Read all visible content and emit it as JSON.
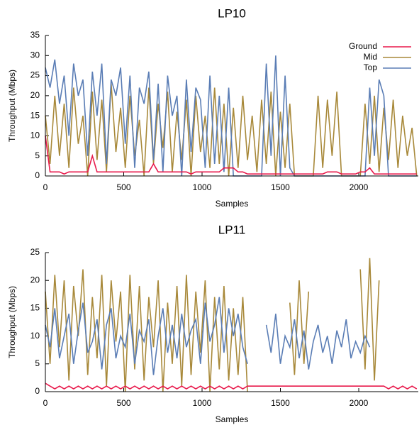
{
  "chart_data": [
    {
      "type": "line",
      "title": "LP10",
      "xlabel": "Samples",
      "ylabel": "Throughput (Mbps)",
      "xlim": [
        0,
        2380
      ],
      "ylim": [
        0,
        35
      ],
      "xticks": [
        0,
        500,
        1000,
        1500,
        2000
      ],
      "yticks": [
        0,
        5,
        10,
        15,
        20,
        25,
        30,
        35
      ],
      "legend": "upper right",
      "x": [
        0,
        30,
        60,
        90,
        120,
        150,
        180,
        210,
        240,
        270,
        300,
        330,
        360,
        390,
        420,
        450,
        480,
        510,
        540,
        570,
        600,
        630,
        660,
        690,
        720,
        750,
        780,
        810,
        840,
        870,
        900,
        930,
        960,
        990,
        1020,
        1050,
        1080,
        1110,
        1140,
        1170,
        1200,
        1230,
        1260,
        1290,
        1320,
        1350,
        1380,
        1410,
        1440,
        1470,
        1500,
        1530,
        1560,
        1590,
        1620,
        1650,
        1680,
        1710,
        1740,
        1770,
        1800,
        1830,
        1860,
        1890,
        1920,
        1950,
        1980,
        2010,
        2040,
        2070,
        2100,
        2130,
        2160,
        2190,
        2220,
        2250,
        2280,
        2310,
        2340,
        2370
      ],
      "series": [
        {
          "name": "Ground",
          "color": "#e8194b",
          "values": [
            10,
            1,
            1,
            1,
            0.5,
            1,
            1,
            1,
            1,
            1,
            5,
            1,
            1,
            1,
            1,
            1,
            1,
            1,
            1,
            1,
            1,
            1,
            1,
            3,
            1,
            1,
            1,
            1,
            1,
            1,
            1,
            0.5,
            1,
            1,
            1,
            1,
            1,
            1,
            2,
            2,
            2,
            1,
            1,
            0.5,
            0.5,
            0.5,
            0.5,
            0.5,
            0.5,
            0.5,
            0.5,
            0.5,
            0.5,
            0.5,
            0.5,
            0.5,
            0.5,
            0.5,
            0.5,
            0.5,
            1,
            1,
            1,
            0.5,
            0.5,
            0.5,
            0.5,
            1,
            1,
            2,
            0.5,
            0.5,
            0.5,
            0.5,
            0.5,
            0.5,
            0.5,
            0.5,
            0.5,
            0.5
          ]
        },
        {
          "name": "Mid",
          "color": "#a8893a",
          "values": [
            15,
            3,
            20,
            5,
            18,
            2,
            22,
            8,
            15,
            0,
            21,
            4,
            19,
            1,
            23,
            6,
            17,
            2,
            20,
            5,
            14,
            0,
            22,
            3,
            18,
            7,
            21,
            1,
            16,
            4,
            19,
            0,
            20,
            6,
            15,
            2,
            22,
            3,
            18,
            0,
            17,
            2,
            20,
            4,
            15,
            1,
            19,
            3,
            21,
            0,
            16,
            2,
            18,
            0,
            0,
            0,
            0,
            0,
            20,
            2,
            19,
            5,
            21,
            0,
            0,
            0,
            0,
            0,
            18,
            3,
            20,
            1,
            17,
            4,
            19,
            2,
            15,
            5,
            12,
            0
          ]
        },
        {
          "name": "Top",
          "color": "#5a7db5",
          "values": [
            27,
            22,
            29,
            18,
            25,
            10,
            28,
            20,
            24,
            5,
            26,
            15,
            28,
            3,
            24,
            20,
            27,
            8,
            25,
            2,
            22,
            18,
            26,
            4,
            23,
            1,
            25,
            15,
            20,
            0,
            24,
            6,
            22,
            19,
            2,
            25,
            3,
            20,
            1,
            22,
            0,
            0,
            0,
            0,
            0,
            0,
            0,
            28,
            5,
            30,
            0,
            25,
            2,
            0,
            0,
            0,
            0,
            0,
            0,
            0,
            0,
            0,
            0,
            0,
            0,
            0,
            0,
            0,
            0,
            22,
            5,
            24,
            20,
            0,
            0,
            0,
            0,
            0,
            0,
            0
          ]
        }
      ]
    },
    {
      "type": "line",
      "title": "LP11",
      "xlabel": "Samples",
      "ylabel": "Throughput (Mbps)",
      "xlim": [
        0,
        2380
      ],
      "ylim": [
        0,
        25
      ],
      "xticks": [
        0,
        500,
        1000,
        1500,
        2000
      ],
      "yticks": [
        0,
        5,
        10,
        15,
        20,
        25
      ],
      "x": [
        0,
        30,
        60,
        90,
        120,
        150,
        180,
        210,
        240,
        270,
        300,
        330,
        360,
        390,
        420,
        450,
        480,
        510,
        540,
        570,
        600,
        630,
        660,
        690,
        720,
        750,
        780,
        810,
        840,
        870,
        900,
        930,
        960,
        990,
        1020,
        1050,
        1080,
        1110,
        1140,
        1170,
        1200,
        1230,
        1260,
        1290,
        1320,
        1350,
        1380,
        1410,
        1440,
        1470,
        1500,
        1530,
        1560,
        1590,
        1620,
        1650,
        1680,
        1710,
        1740,
        1770,
        1800,
        1830,
        1860,
        1890,
        1920,
        1950,
        1980,
        2010,
        2040,
        2070,
        2100,
        2130,
        2160,
        2190,
        2220,
        2250,
        2280,
        2310,
        2340,
        2370
      ],
      "series": [
        {
          "color": "#e8194b",
          "values": [
            1.5,
            1,
            0.5,
            1,
            0.5,
            1,
            0.5,
            1,
            0.5,
            1,
            0.5,
            1,
            0.5,
            1,
            0.5,
            1,
            0.5,
            1,
            0.5,
            1,
            0.5,
            1,
            0.5,
            1,
            0.5,
            1,
            0.5,
            1,
            0.5,
            1,
            0.5,
            1,
            0.5,
            1,
            0.5,
            1,
            0.5,
            1,
            0.5,
            1,
            0.5,
            1,
            0.5,
            1,
            1,
            1,
            1,
            1,
            1,
            1,
            1,
            1,
            1,
            1,
            1,
            1,
            1,
            1,
            1,
            1,
            1,
            1,
            1,
            1,
            1,
            1,
            1,
            1,
            1,
            1,
            1,
            1,
            1,
            0.5,
            1,
            0.5,
            1,
            0.5,
            1,
            0.5
          ]
        },
        {
          "color": "#a8893a",
          "values": [
            18,
            5,
            21,
            8,
            20,
            2,
            19,
            10,
            22,
            3,
            17,
            6,
            21,
            1,
            20,
            9,
            18,
            0,
            21,
            4,
            19,
            2,
            17,
            8,
            20,
            0,
            16,
            5,
            19,
            1,
            21,
            3,
            18,
            7,
            20,
            0,
            17,
            4,
            19,
            2,
            15,
            3,
            17,
            0,
            null,
            null,
            null,
            null,
            null,
            null,
            null,
            null,
            16,
            3,
            20,
            5,
            18,
            null,
            null,
            null,
            null,
            null,
            null,
            null,
            null,
            null,
            null,
            22,
            4,
            24,
            2,
            20,
            null,
            null,
            null,
            null,
            null,
            null,
            null,
            null
          ]
        },
        {
          "color": "#5a7db5",
          "values": [
            12,
            8,
            15,
            6,
            10,
            14,
            5,
            11,
            16,
            7,
            9,
            13,
            4,
            12,
            15,
            6,
            10,
            8,
            14,
            5,
            11,
            9,
            13,
            3,
            10,
            15,
            7,
            12,
            6,
            14,
            8,
            11,
            13,
            5,
            16,
            9,
            12,
            17,
            7,
            15,
            10,
            14,
            8,
            5,
            null,
            null,
            null,
            12,
            7,
            14,
            5,
            10,
            8,
            13,
            6,
            11,
            4,
            9,
            12,
            7,
            10,
            5,
            11,
            8,
            13,
            6,
            9,
            7,
            10,
            8,
            null,
            null,
            null,
            null,
            null,
            null,
            null,
            null,
            null,
            null
          ]
        }
      ]
    }
  ]
}
